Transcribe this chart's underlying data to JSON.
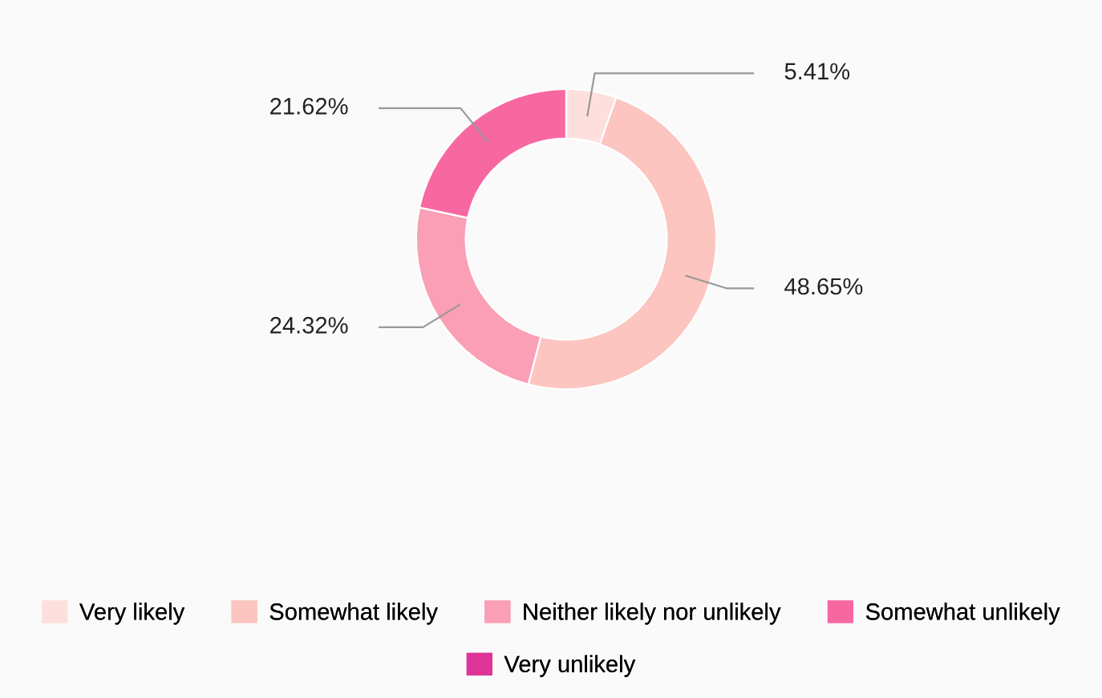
{
  "chart_data": {
    "type": "donut",
    "categories": [
      "Very likely",
      "Somewhat likely",
      "Neither likely nor unlikely",
      "Somewhat unlikely",
      "Very unlikely"
    ],
    "values": [
      5.41,
      48.65,
      24.32,
      21.62,
      0
    ],
    "value_labels": [
      "5.41%",
      "48.65%",
      "24.32%",
      "21.62%",
      null
    ],
    "colors": [
      "#fde0dd",
      "#fcc5c0",
      "#fa9fb5",
      "#f768a1",
      "#dd3497"
    ],
    "legend": "bottom"
  }
}
